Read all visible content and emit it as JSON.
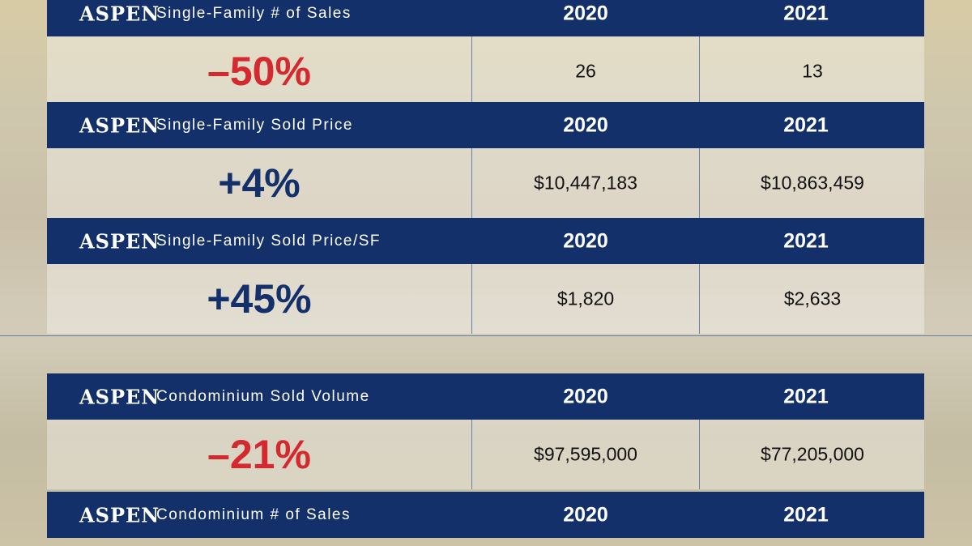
{
  "blocks": [
    {
      "brand": "ASPEN",
      "metric": "Single-Family # of Sales",
      "years": [
        "2020",
        "2021"
      ],
      "change": "–50%",
      "change_color": "#d42a2f",
      "values": [
        "26",
        "13"
      ]
    },
    {
      "brand": "ASPEN",
      "metric": "Single-Family Sold Price",
      "years": [
        "2020",
        "2021"
      ],
      "change": "+4%",
      "change_color": "#13306a",
      "values": [
        "$10,447,183",
        "$10,863,459"
      ]
    },
    {
      "brand": "ASPEN",
      "metric": "Single-Family Sold Price/SF",
      "years": [
        "2020",
        "2021"
      ],
      "change": "+45%",
      "change_color": "#13306a",
      "values": [
        "$1,820",
        "$2,633"
      ]
    },
    {
      "brand": "ASPEN",
      "metric": "Condominium Sold Volume",
      "years": [
        "2020",
        "2021"
      ],
      "change": "–21%",
      "change_color": "#d42a2f",
      "values": [
        "$97,595,000",
        "$77,205,000"
      ]
    },
    {
      "brand": "ASPEN",
      "metric": "Condominium # of Sales",
      "years": [
        "2020",
        "2021"
      ]
    }
  ]
}
